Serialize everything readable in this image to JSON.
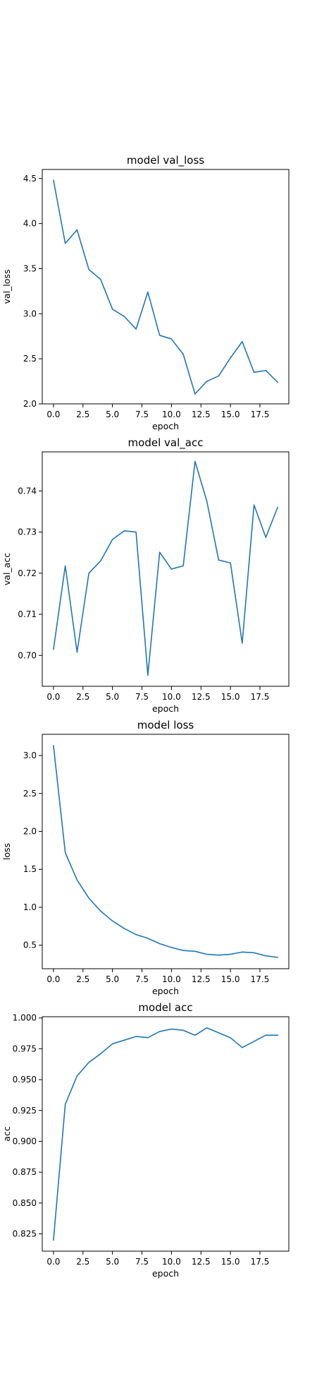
{
  "chart_data": [
    {
      "type": "line",
      "title": "model val_loss",
      "xlabel": "epoch",
      "ylabel": "val_loss",
      "xlim": [
        -0.95,
        19.95
      ],
      "ylim": [
        2.0,
        4.6
      ],
      "xticks": [
        0.0,
        2.5,
        5.0,
        7.5,
        10.0,
        12.5,
        15.0,
        17.5
      ],
      "xtick_labels": [
        "0.0",
        "2.5",
        "5.0",
        "7.5",
        "10.0",
        "12.5",
        "15.0",
        "17.5"
      ],
      "yticks": [
        2.0,
        2.5,
        3.0,
        3.5,
        4.0,
        4.5
      ],
      "ytick_labels": [
        "2.0",
        "2.5",
        "3.0",
        "3.5",
        "4.0",
        "4.5"
      ],
      "grid": false,
      "color": "#1f77b4",
      "x": [
        0,
        1,
        2,
        3,
        4,
        5,
        6,
        7,
        8,
        9,
        10,
        11,
        12,
        13,
        14,
        15,
        16,
        17,
        18,
        19
      ],
      "series": [
        {
          "values": [
            4.48,
            3.78,
            3.93,
            3.49,
            3.38,
            3.05,
            2.97,
            2.83,
            3.24,
            2.76,
            2.72,
            2.55,
            2.11,
            2.25,
            2.31,
            2.51,
            2.69,
            2.35,
            2.37,
            2.24
          ]
        }
      ]
    },
    {
      "type": "line",
      "title": "model val_acc",
      "xlabel": "epoch",
      "ylabel": "val_acc",
      "xlim": [
        -0.95,
        19.95
      ],
      "ylim": [
        0.6925,
        0.7495
      ],
      "xticks": [
        0.0,
        2.5,
        5.0,
        7.5,
        10.0,
        12.5,
        15.0,
        17.5
      ],
      "xtick_labels": [
        "0.0",
        "2.5",
        "5.0",
        "7.5",
        "10.0",
        "12.5",
        "15.0",
        "17.5"
      ],
      "yticks": [
        0.7,
        0.71,
        0.72,
        0.73,
        0.74
      ],
      "ytick_labels": [
        "0.70",
        "0.71",
        "0.72",
        "0.73",
        "0.74"
      ],
      "grid": false,
      "color": "#1f77b4",
      "x": [
        0,
        1,
        2,
        3,
        4,
        5,
        6,
        7,
        8,
        9,
        10,
        11,
        12,
        13,
        14,
        15,
        16,
        17,
        18,
        19
      ],
      "series": [
        {
          "values": [
            0.7015,
            0.7218,
            0.7008,
            0.72,
            0.723,
            0.7282,
            0.7303,
            0.73,
            0.6952,
            0.7251,
            0.721,
            0.7218,
            0.7472,
            0.7375,
            0.7232,
            0.7225,
            0.703,
            0.7366,
            0.7287,
            0.736
          ]
        }
      ]
    },
    {
      "type": "line",
      "title": "model loss",
      "xlabel": "epoch",
      "ylabel": "loss",
      "xlim": [
        -0.95,
        19.95
      ],
      "ylim": [
        0.19,
        3.28
      ],
      "xticks": [
        0.0,
        2.5,
        5.0,
        7.5,
        10.0,
        12.5,
        15.0,
        17.5
      ],
      "xtick_labels": [
        "0.0",
        "2.5",
        "5.0",
        "7.5",
        "10.0",
        "12.5",
        "15.0",
        "17.5"
      ],
      "yticks": [
        0.5,
        1.0,
        1.5,
        2.0,
        2.5,
        3.0
      ],
      "ytick_labels": [
        "0.5",
        "1.0",
        "1.5",
        "2.0",
        "2.5",
        "3.0"
      ],
      "grid": false,
      "color": "#1f77b4",
      "x": [
        0,
        1,
        2,
        3,
        4,
        5,
        6,
        7,
        8,
        9,
        10,
        11,
        12,
        13,
        14,
        15,
        16,
        17,
        18,
        19
      ],
      "series": [
        {
          "values": [
            3.13,
            1.72,
            1.36,
            1.12,
            0.95,
            0.82,
            0.72,
            0.64,
            0.59,
            0.52,
            0.47,
            0.43,
            0.42,
            0.38,
            0.37,
            0.38,
            0.41,
            0.4,
            0.36,
            0.34
          ]
        }
      ]
    },
    {
      "type": "line",
      "title": "model acc",
      "xlabel": "epoch",
      "ylabel": "acc",
      "xlim": [
        -0.95,
        19.95
      ],
      "ylim": [
        0.811,
        1.001
      ],
      "xticks": [
        0.0,
        2.5,
        5.0,
        7.5,
        10.0,
        12.5,
        15.0,
        17.5
      ],
      "xtick_labels": [
        "0.0",
        "2.5",
        "5.0",
        "7.5",
        "10.0",
        "12.5",
        "15.0",
        "17.5"
      ],
      "yticks": [
        0.825,
        0.85,
        0.875,
        0.9,
        0.925,
        0.95,
        0.975,
        1.0
      ],
      "ytick_labels": [
        "0.825",
        "0.850",
        "0.875",
        "0.900",
        "0.925",
        "0.950",
        "0.975",
        "1.000"
      ],
      "grid": false,
      "color": "#1f77b4",
      "x": [
        0,
        1,
        2,
        3,
        4,
        5,
        6,
        7,
        8,
        9,
        10,
        11,
        12,
        13,
        14,
        15,
        16,
        17,
        18,
        19
      ],
      "series": [
        {
          "values": [
            0.82,
            0.93,
            0.953,
            0.964,
            0.971,
            0.979,
            0.982,
            0.985,
            0.984,
            0.989,
            0.991,
            0.99,
            0.986,
            0.992,
            0.988,
            0.984,
            0.976,
            0.981,
            0.986,
            0.986
          ]
        }
      ]
    }
  ]
}
